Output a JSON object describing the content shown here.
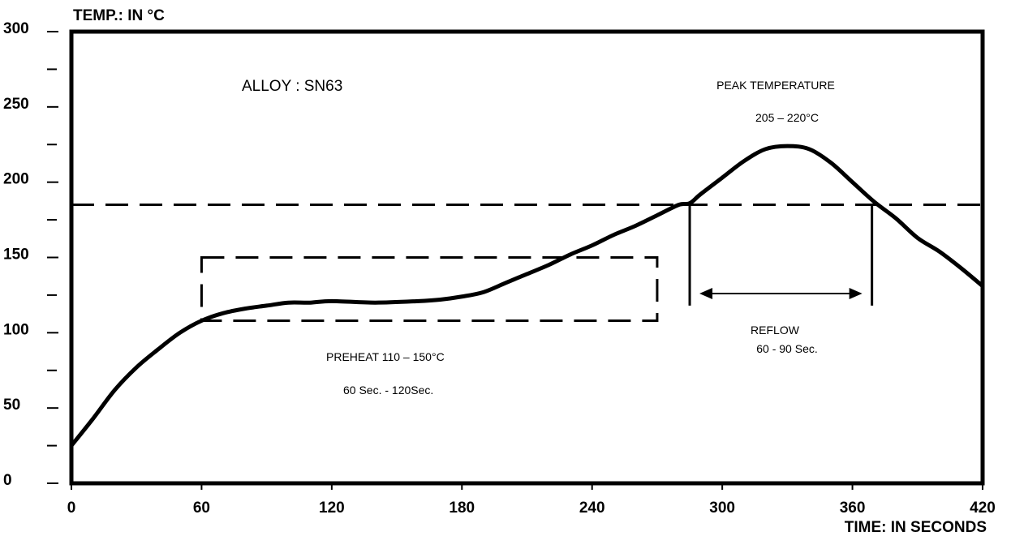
{
  "chart_data": {
    "type": "line",
    "ylabel": "TEMP.: IN °C",
    "xlabel": "TIME: IN SECONDS",
    "xlim": [
      0,
      420
    ],
    "ylim": [
      0,
      300
    ],
    "x_ticks": [
      0,
      60,
      120,
      180,
      240,
      300,
      360,
      420
    ],
    "x_tick_labels": [
      "0",
      "60",
      "120",
      "180",
      "240",
      "300",
      "360",
      "420"
    ],
    "y_ticks": [
      0,
      50,
      100,
      150,
      200,
      250,
      300
    ],
    "y_tick_labels": [
      "0",
      "50",
      "100",
      "150",
      "200",
      "250",
      "300"
    ],
    "y_minor_ticks": [
      25,
      75,
      125,
      175,
      225,
      275
    ],
    "grid": false,
    "series": [
      {
        "x": [
          0,
          10,
          20,
          30,
          40,
          50,
          60,
          70,
          80,
          90,
          100,
          110,
          120,
          140,
          160,
          170,
          180,
          190,
          200,
          210,
          220,
          230,
          240,
          250,
          260,
          270,
          280,
          285,
          290,
          300,
          310,
          320,
          330,
          340,
          350,
          360,
          370,
          380,
          390,
          400,
          410,
          420
        ],
        "y": [
          25,
          43,
          62,
          77,
          89,
          100,
          108,
          113,
          116,
          118,
          120,
          120,
          121,
          120,
          121,
          122,
          124,
          127,
          133,
          139,
          145,
          152,
          158,
          165,
          171,
          178,
          185,
          186,
          192,
          203,
          214,
          222,
          224,
          222,
          213,
          200,
          187,
          176,
          163,
          154,
          143,
          131
        ]
      }
    ],
    "reference_line_y": 185,
    "preheat_box": {
      "x": [
        60,
        270
      ],
      "y": [
        108,
        150
      ]
    },
    "reflow_span": {
      "x": [
        285,
        369
      ],
      "y_arrow": 126
    },
    "annotations": {
      "alloy": "ALLOY : SN63",
      "peak_title": "PEAK TEMPERATURE",
      "peak_range": "205 – 220°C",
      "preheat_range": "PREHEAT 110 – 150°C",
      "preheat_time": "60 Sec. - 120Sec.",
      "reflow_title": "REFLOW",
      "reflow_time": "60 - 90 Sec."
    }
  }
}
